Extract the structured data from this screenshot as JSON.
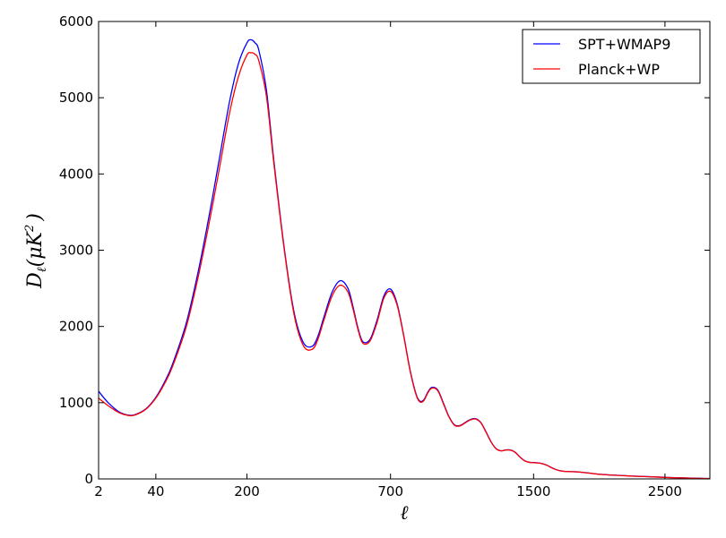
{
  "chart_data": {
    "type": "line",
    "title": "",
    "xlabel": "ℓ",
    "ylabel_main": "D",
    "ylabel_sub": "ℓ",
    "ylabel_unit_open": "(μK",
    "ylabel_unit_exp": "2",
    "ylabel_unit_close": ")",
    "x_axis_note": "horizontal axis is nonlinear: uniform spacing in ℓ^0.5",
    "xlim": [
      2,
      2900
    ],
    "ylim": [
      0,
      6000
    ],
    "xticks": [
      {
        "value": 2,
        "label": "2"
      },
      {
        "value": 40,
        "label": "40"
      },
      {
        "value": 200,
        "label": "200"
      },
      {
        "value": 700,
        "label": "700"
      },
      {
        "value": 1500,
        "label": "1500"
      },
      {
        "value": 2500,
        "label": "2500"
      }
    ],
    "yticks": [
      {
        "value": 0,
        "label": "0"
      },
      {
        "value": 1000,
        "label": "1000"
      },
      {
        "value": 2000,
        "label": "2000"
      },
      {
        "value": 3000,
        "label": "3000"
      },
      {
        "value": 4000,
        "label": "4000"
      },
      {
        "value": 5000,
        "label": "5000"
      },
      {
        "value": 6000,
        "label": "6000"
      }
    ],
    "grid": false,
    "legend_position": "top-right",
    "series": [
      {
        "name": "SPT+WMAP9",
        "color": "#0000ff",
        "x": [
          2,
          5,
          10,
          15,
          20,
          30,
          40,
          50,
          60,
          80,
          100,
          120,
          140,
          160,
          180,
          200,
          210,
          220,
          230,
          250,
          270,
          300,
          330,
          360,
          390,
          410,
          430,
          460,
          490,
          520,
          540,
          560,
          580,
          610,
          640,
          670,
          700,
          730,
          760,
          790,
          820,
          840,
          860,
          880,
          900,
          930,
          960,
          990,
          1020,
          1050,
          1080,
          1110,
          1140,
          1170,
          1200,
          1230,
          1260,
          1290,
          1320,
          1350,
          1380,
          1410,
          1440,
          1470,
          1500,
          1530,
          1560,
          1590,
          1620,
          1650,
          1680,
          1710,
          1740,
          1770,
          1800,
          1850,
          1900,
          1950,
          2000,
          2050,
          2100,
          2150,
          2200,
          2250,
          2300,
          2350,
          2400,
          2450,
          2500,
          2550,
          2600,
          2650,
          2700,
          2750,
          2800,
          2850,
          2900
        ],
        "y": [
          1150,
          1000,
          880,
          840,
          840,
          920,
          1070,
          1270,
          1500,
          2050,
          2750,
          3500,
          4250,
          4950,
          5450,
          5720,
          5760,
          5720,
          5620,
          5100,
          4200,
          3050,
          2200,
          1790,
          1740,
          1880,
          2120,
          2450,
          2600,
          2500,
          2260,
          1980,
          1800,
          1830,
          2080,
          2400,
          2490,
          2300,
          1900,
          1450,
          1120,
          1020,
          1040,
          1140,
          1200,
          1170,
          1000,
          820,
          710,
          700,
          740,
          780,
          790,
          740,
          620,
          490,
          400,
          370,
          380,
          380,
          350,
          290,
          240,
          220,
          215,
          210,
          200,
          180,
          150,
          125,
          108,
          100,
          97,
          95,
          93,
          85,
          75,
          65,
          58,
          52,
          48,
          44,
          40,
          36,
          33,
          30,
          27,
          24,
          21,
          18,
          16,
          14,
          12,
          10,
          8,
          6,
          5
        ]
      },
      {
        "name": "Planck+WP",
        "color": "#ff0000",
        "x": [
          2,
          5,
          10,
          15,
          20,
          30,
          40,
          50,
          60,
          80,
          100,
          120,
          140,
          160,
          180,
          200,
          210,
          220,
          230,
          250,
          270,
          300,
          330,
          360,
          390,
          410,
          430,
          460,
          490,
          520,
          540,
          560,
          580,
          610,
          640,
          670,
          700,
          730,
          760,
          790,
          820,
          840,
          860,
          880,
          900,
          930,
          960,
          990,
          1020,
          1050,
          1080,
          1110,
          1140,
          1170,
          1200,
          1230,
          1260,
          1290,
          1320,
          1350,
          1380,
          1410,
          1440,
          1470,
          1500,
          1530,
          1560,
          1590,
          1620,
          1650,
          1680,
          1710,
          1740,
          1770,
          1800,
          1850,
          1900,
          1950,
          2000,
          2050,
          2100,
          2150,
          2200,
          2250,
          2300,
          2350,
          2400,
          2450,
          2500,
          2550,
          2600,
          2650,
          2700,
          2750,
          2800,
          2850,
          2900
        ],
        "y": [
          1060,
          960,
          870,
          835,
          835,
          915,
          1060,
          1250,
          1470,
          2000,
          2680,
          3400,
          4120,
          4800,
          5280,
          5560,
          5590,
          5570,
          5480,
          5020,
          4160,
          3030,
          2170,
          1750,
          1700,
          1840,
          2080,
          2400,
          2540,
          2450,
          2230,
          1960,
          1780,
          1810,
          2050,
          2370,
          2460,
          2280,
          1890,
          1440,
          1110,
          1010,
          1030,
          1130,
          1190,
          1160,
          990,
          815,
          705,
          695,
          735,
          775,
          785,
          735,
          615,
          488,
          398,
          368,
          378,
          378,
          348,
          288,
          238,
          218,
          213,
          208,
          198,
          178,
          148,
          124,
          107,
          99,
          96,
          94,
          92,
          84,
          74,
          64,
          57,
          51,
          47,
          43,
          39,
          35,
          32,
          29,
          26,
          23,
          20,
          17,
          15,
          13,
          11,
          9,
          7,
          5,
          4
        ]
      }
    ]
  }
}
